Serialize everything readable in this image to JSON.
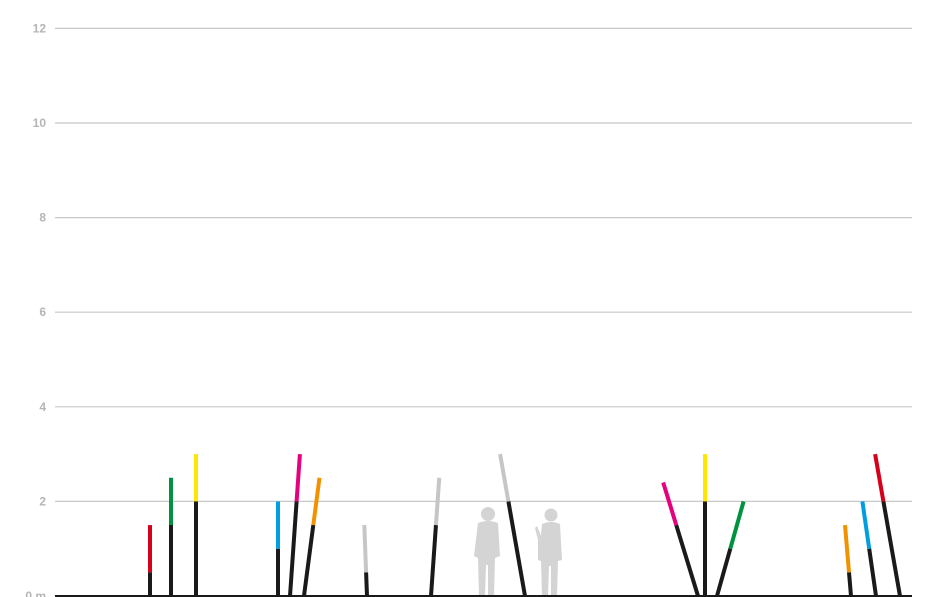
{
  "chart_data": {
    "type": "diagram",
    "y_axis": {
      "range": [
        0,
        12
      ],
      "ticks": [
        {
          "value": 0,
          "label": "0 m"
        },
        {
          "value": 2,
          "label": "2"
        },
        {
          "value": 4,
          "label": "4"
        },
        {
          "value": 6,
          "label": "6"
        },
        {
          "value": 8,
          "label": "8"
        },
        {
          "value": 10,
          "label": "10"
        },
        {
          "value": 12,
          "label": "12"
        }
      ],
      "grid": true
    },
    "colors": {
      "black": "#1a1a1a",
      "red": "#d7001a",
      "green": "#00923f",
      "yellow": "#ffe600",
      "blue": "#009ee0",
      "magenta": "#e5007d",
      "orange": "#f39200",
      "grey": "#c6c6c6"
    },
    "poles": [
      {
        "group": 1,
        "base_height": 0.5,
        "tip_color": "red",
        "total_height": 1.5
      },
      {
        "group": 1,
        "base_height": 1.5,
        "tip_color": "green",
        "total_height": 2.5
      },
      {
        "group": 1,
        "base_height": 2.0,
        "tip_color": "yellow",
        "total_height": 3.0
      },
      {
        "group": 2,
        "base_height": 1.0,
        "tip_color": "blue",
        "total_height": 2.0
      },
      {
        "group": 2,
        "base_height": 2.0,
        "tip_color": "magenta",
        "total_height": 3.0
      },
      {
        "group": 2,
        "base_height": 1.5,
        "tip_color": "orange",
        "total_height": 2.5
      },
      {
        "group": 3,
        "base_height": 0.5,
        "tip_color": "grey",
        "total_height": 1.5
      },
      {
        "group": 3,
        "base_height": 1.5,
        "tip_color": "grey",
        "total_height": 2.5
      },
      {
        "group": 3,
        "base_height": 2.0,
        "tip_color": "grey",
        "total_height": 3.0
      },
      {
        "group": 4,
        "base_height": 1.5,
        "tip_color": "magenta",
        "total_height": 2.4
      },
      {
        "group": 4,
        "base_height": 2.0,
        "tip_color": "yellow",
        "total_height": 3.0
      },
      {
        "group": 4,
        "base_height": 1.0,
        "tip_color": "green",
        "total_height": 2.0
      },
      {
        "group": 5,
        "base_height": 0.5,
        "tip_color": "orange",
        "total_height": 1.5
      },
      {
        "group": 5,
        "base_height": 1.0,
        "tip_color": "blue",
        "total_height": 2.0
      },
      {
        "group": 5,
        "base_height": 2.0,
        "tip_color": "red",
        "total_height": 3.0
      }
    ],
    "scale_figures": [
      "person-silhouette",
      "person-silhouette"
    ]
  }
}
